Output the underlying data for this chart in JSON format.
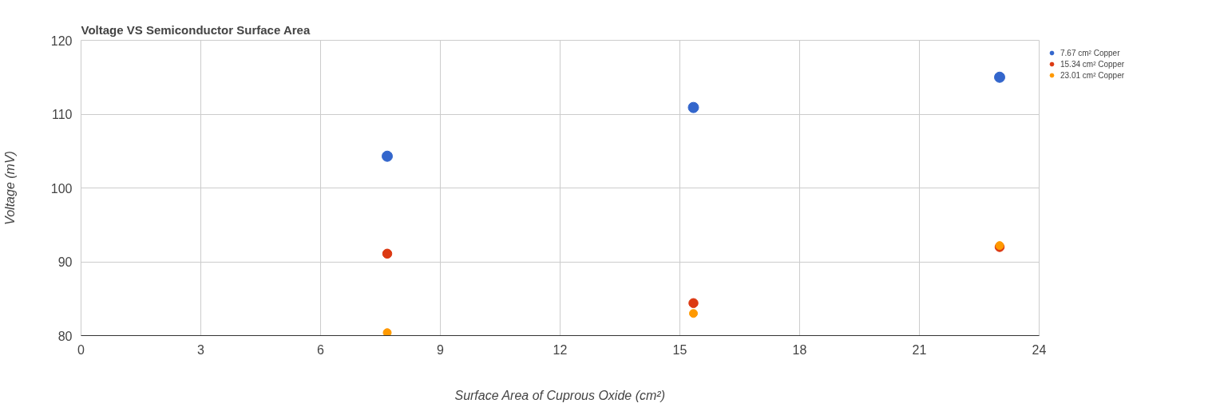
{
  "chart_data": {
    "type": "scatter",
    "title": "Voltage VS Semiconductor Surface Area",
    "xlabel": "Surface Area of Cuprous Oxide (cm²)",
    "ylabel": "Voltage (mV)",
    "x": [
      7.67,
      15.34,
      23.01
    ],
    "series": [
      {
        "name": "7.67 cm² Copper",
        "color": "#3366cc",
        "values": [
          104.3,
          110.9,
          115
        ]
      },
      {
        "name": "15.34 cm² Copper",
        "color": "#dc3912",
        "values": [
          91.1,
          84.4,
          92
        ]
      },
      {
        "name": "23.01 cm² Copper",
        "color": "#ff9900",
        "values": [
          80.4,
          83,
          92.2
        ]
      }
    ],
    "xlim": [
      0,
      24
    ],
    "xticks": [
      0,
      3,
      6,
      9,
      12,
      15,
      18,
      21,
      24
    ],
    "ylim": [
      80,
      120
    ],
    "yticks": [
      80,
      90,
      100,
      110,
      120
    ],
    "grid": true,
    "legend": "top right",
    "marker": "circle"
  }
}
